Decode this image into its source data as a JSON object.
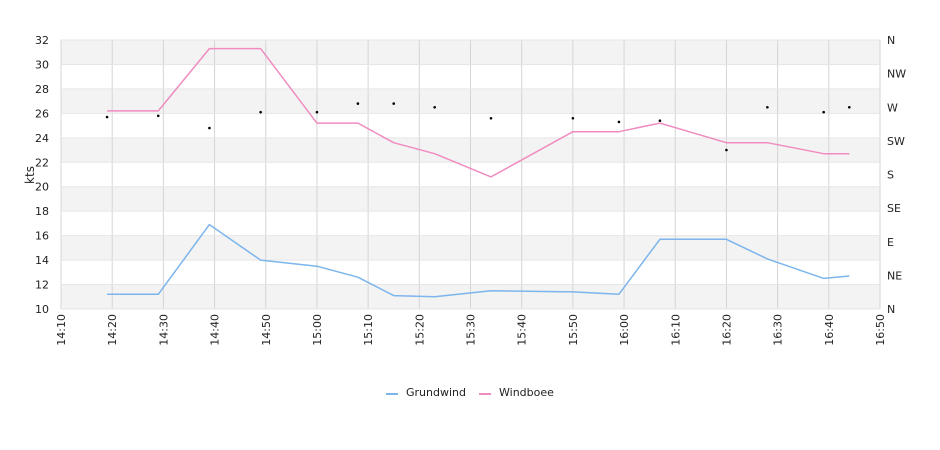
{
  "chart_data": {
    "type": "line",
    "title": "",
    "xlabel": "",
    "ylabel": "kts",
    "ylim": [
      10,
      32
    ],
    "yticks": [
      "10",
      "12",
      "14",
      "16",
      "18",
      "20",
      "22",
      "24",
      "26",
      "28",
      "30",
      "32"
    ],
    "xlim": [
      "14:10",
      "16:50"
    ],
    "xticks": [
      "14:10",
      "14:20",
      "14:30",
      "14:40",
      "14:50",
      "15:00",
      "15:10",
      "15:20",
      "15:30",
      "15:40",
      "15:50",
      "16:00",
      "16:10",
      "16:20",
      "16:30",
      "16:40",
      "16:50"
    ],
    "right_axis": {
      "label": "",
      "ticks": [
        "N",
        "NE",
        "E",
        "SE",
        "S",
        "SW",
        "W",
        "NW",
        "N"
      ]
    },
    "grid": true,
    "legend_position": "bottom",
    "colors": {
      "grundwind": "#7cb5ec",
      "windboee": "#f08cc0",
      "direction": "#000000",
      "band": "#f3f3f3",
      "grid": "#d4d4d4"
    },
    "series": [
      {
        "name": "Grundwind",
        "x": [
          "14:19",
          "14:29",
          "14:39",
          "14:49",
          "15:00",
          "15:08",
          "15:15",
          "15:23",
          "15:34",
          "15:50",
          "15:59",
          "16:07",
          "16:20",
          "16:28",
          "16:39",
          "16:44"
        ],
        "values": [
          11.2,
          11.2,
          16.9,
          14.0,
          13.5,
          12.6,
          11.1,
          11.0,
          11.5,
          11.4,
          11.2,
          15.7,
          15.7,
          14.1,
          12.5,
          12.7
        ]
      },
      {
        "name": "Windboee",
        "x": [
          "14:19",
          "14:29",
          "14:39",
          "14:49",
          "15:00",
          "15:08",
          "15:15",
          "15:23",
          "15:34",
          "15:50",
          "15:59",
          "16:07",
          "16:20",
          "16:28",
          "16:39",
          "16:44"
        ],
        "values": [
          26.2,
          26.2,
          31.3,
          31.3,
          25.2,
          25.2,
          23.6,
          22.7,
          20.8,
          24.5,
          24.5,
          25.2,
          23.6,
          23.6,
          22.7,
          22.7
        ]
      },
      {
        "name": "",
        "marker_only": true,
        "x": [
          "14:19",
          "14:29",
          "14:39",
          "14:49",
          "15:00",
          "15:08",
          "15:15",
          "15:23",
          "15:34",
          "15:50",
          "15:59",
          "16:07",
          "16:20",
          "16:28",
          "16:39",
          "16:44"
        ],
        "values": [
          25.7,
          25.8,
          24.8,
          26.1,
          26.1,
          26.8,
          26.8,
          26.5,
          25.6,
          25.6,
          25.3,
          25.4,
          23.0,
          26.5,
          26.1,
          26.5
        ]
      }
    ]
  }
}
